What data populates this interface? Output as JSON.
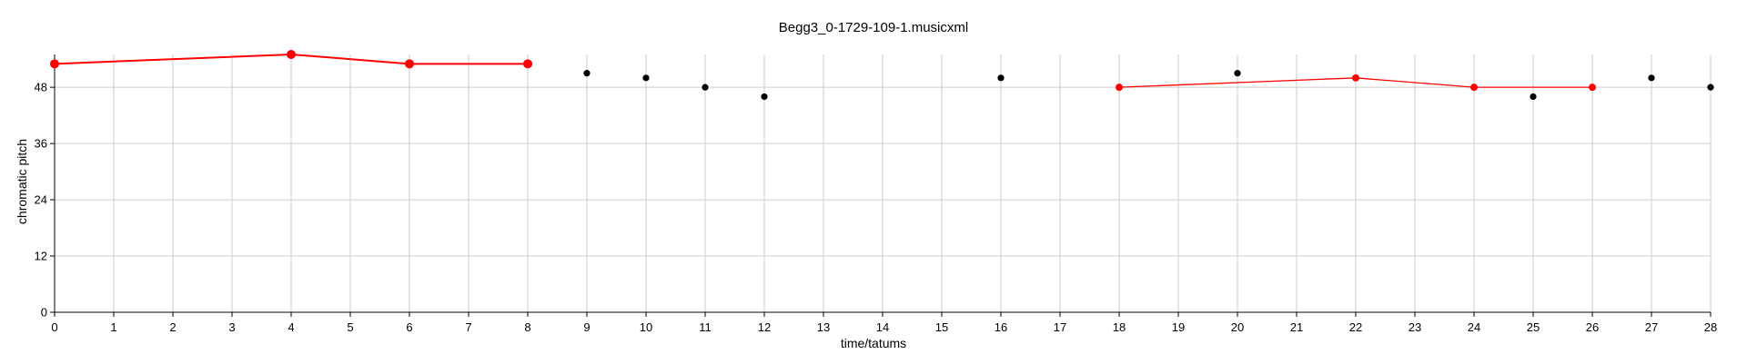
{
  "chart_data": {
    "type": "scatter",
    "title": "Begg3_0-1729-109-1.musicxml",
    "xlabel": "time/tatums",
    "ylabel": "chromatic pitch",
    "xlim": [
      0,
      28
    ],
    "ylim": [
      0,
      55
    ],
    "x_ticks": [
      0,
      1,
      2,
      3,
      4,
      5,
      6,
      7,
      8,
      9,
      10,
      11,
      12,
      13,
      14,
      15,
      16,
      17,
      18,
      19,
      20,
      21,
      22,
      23,
      24,
      25,
      26,
      27,
      28
    ],
    "y_ticks": [
      0,
      12,
      24,
      36,
      48
    ],
    "grid": true,
    "colors": {
      "highlight": "#ff0000",
      "notes": "#000000",
      "grid": "#cccccc"
    },
    "series": [
      {
        "points": [
          [
            0,
            53
          ],
          [
            4,
            55
          ],
          [
            6,
            53
          ],
          [
            8,
            53
          ]
        ],
        "color": "#ff0000",
        "connected": true,
        "marker": "large"
      },
      {
        "points": [
          [
            9,
            51
          ],
          [
            10,
            50
          ],
          [
            11,
            48
          ],
          [
            12,
            46
          ],
          [
            16,
            50
          ],
          [
            20,
            51
          ],
          [
            25,
            46
          ],
          [
            27,
            50
          ],
          [
            28,
            48
          ]
        ],
        "color": "#000000",
        "connected": false,
        "marker": "small"
      },
      {
        "points": [
          [
            18,
            48
          ],
          [
            22,
            50
          ],
          [
            24,
            48
          ],
          [
            26,
            48
          ]
        ],
        "color": "#ff0000",
        "connected": true,
        "marker": "medium"
      }
    ]
  }
}
